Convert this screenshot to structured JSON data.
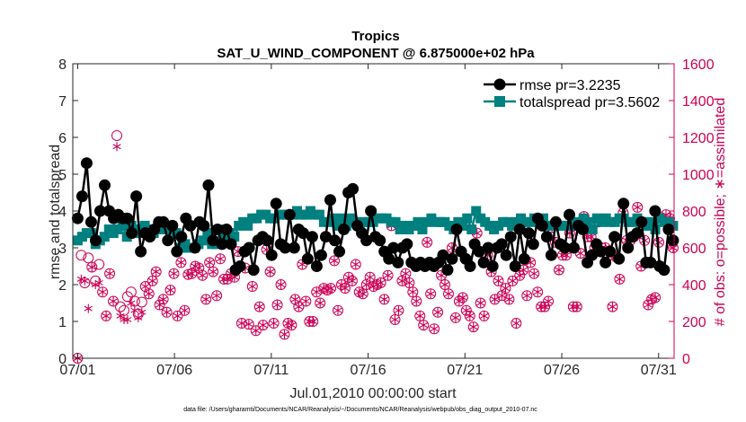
{
  "chart_data": {
    "type": "line",
    "title": "Tropics",
    "subtitle": "SAT_U_WIND_COMPONENT @ 6.875000e+02 hPa",
    "xlabel": "Jul.01,2010 00:00:00 start",
    "ylabel_left": "rmse and totalspread",
    "ylabel_right": "# of obs: o=possible; ∗=assimilated",
    "footnote": "data file: /Users/gharamti/Documents/NCAR/Reanalysis/~/Documents/NCAR/Reanalysis/webpub/obs_diag_output_2010-07.nc",
    "xlim": [
      0.75,
      31.8
    ],
    "ylim_left": [
      0,
      8
    ],
    "ylim_right": [
      0,
      1600
    ],
    "x_ticks": [
      1,
      6,
      11,
      16,
      21,
      26,
      31
    ],
    "x_tick_labels": [
      "07/01",
      "07/06",
      "07/11",
      "07/16",
      "07/21",
      "07/26",
      "07/31"
    ],
    "y_left_ticks": [
      "0",
      "1",
      "2",
      "3",
      "4",
      "5",
      "6",
      "7",
      "8"
    ],
    "y_right_ticks": [
      "0",
      "200",
      "400",
      "600",
      "800",
      "1000",
      "1200",
      "1400",
      "1600"
    ],
    "legend_position": "top-right",
    "colors": {
      "rmse": "#000000",
      "spread": "#00807f",
      "obs": "#cc0055"
    },
    "series": [
      {
        "name": "rmse pr=3.2235",
        "axis": "left",
        "marker": "circle",
        "values": [
          3.8,
          4.4,
          5.3,
          3.7,
          3.2,
          4.0,
          4.7,
          4.0,
          3.8,
          3.9,
          3.8,
          3.8,
          3.4,
          4.4,
          2.9,
          3.4,
          3.3,
          3.5,
          3.7,
          3.7,
          3.2,
          3.6,
          2.9,
          3.3,
          3.8,
          3.6,
          3.0,
          3.7,
          3.6,
          4.7,
          3.2,
          3.5,
          3.1,
          3.5,
          3.1,
          2.4,
          2.5,
          2.9,
          3.0,
          2.4,
          3.2,
          3.3,
          3.2,
          2.8,
          4.2,
          3.1,
          3.0,
          3.9,
          3.0,
          3.5,
          3.4,
          2.7,
          3.3,
          2.5,
          2.8,
          3.3,
          4.3,
          3.2,
          2.9,
          3.5,
          4.5,
          4.6,
          3.6,
          3.4,
          3.2,
          4.0,
          3.3,
          3.2,
          2.9,
          2.7,
          3.0,
          2.6,
          3.0,
          3.1,
          2.6,
          2.5,
          2.6,
          2.5,
          2.6,
          2.5,
          2.6,
          2.8,
          2.4,
          2.7,
          3.5,
          2.9,
          2.7,
          2.5,
          3.1,
          2.9,
          2.6,
          3.0,
          2.5,
          3.0,
          3.1,
          2.8,
          3.3,
          2.5,
          3.5,
          2.7,
          3.4,
          3.1,
          3.8,
          3.6,
          3.3,
          2.8,
          3.7,
          3.1,
          3.0,
          3.9,
          3.0,
          3.6,
          3.5,
          2.6,
          2.8,
          3.1,
          2.9,
          2.6,
          2.9,
          3.3,
          2.7,
          4.2,
          3.0,
          3.3,
          3.4,
          3.7,
          2.6,
          2.6,
          4.0,
          2.5,
          2.4,
          3.5,
          3.2
        ]
      },
      {
        "name": "totalspread pr=3.5602",
        "axis": "left",
        "marker": "square",
        "values": [
          3.2,
          3.3,
          3.4,
          3.4,
          3.1,
          3.2,
          3.3,
          3.5,
          3.4,
          3.5,
          3.6,
          3.3,
          3.6,
          3.5,
          3.4,
          3.6,
          3.5,
          3.4,
          3.5,
          3.6,
          3.5,
          3.6,
          3.4,
          3.0,
          3.1,
          3.0,
          3.0,
          3.1,
          3.2,
          3.4,
          3.1,
          3.1,
          3.5,
          3.3,
          3.4,
          3.3,
          3.6,
          3.7,
          3.6,
          3.8,
          3.8,
          3.9,
          3.9,
          3.8,
          3.8,
          3.9,
          3.9,
          3.9,
          3.9,
          4.0,
          3.9,
          3.9,
          4.0,
          3.9,
          3.9,
          3.7,
          3.7,
          3.8,
          3.6,
          3.8,
          3.6,
          3.8,
          3.7,
          3.6,
          3.7,
          3.7,
          3.7,
          3.8,
          3.8,
          3.8,
          3.7,
          3.7,
          3.5,
          3.6,
          3.5,
          3.6,
          3.7,
          3.5,
          3.7,
          3.8,
          3.7,
          3.7,
          3.7,
          3.6,
          3.5,
          3.7,
          3.6,
          3.8,
          3.5,
          4.0,
          3.8,
          3.7,
          3.6,
          3.5,
          3.6,
          3.7,
          3.7,
          3.6,
          3.7,
          3.8,
          3.7,
          3.7,
          3.8,
          3.7,
          3.8,
          3.6,
          3.6,
          3.6,
          3.6,
          3.6,
          3.6,
          3.7,
          3.6,
          3.8,
          3.7,
          3.5,
          3.8,
          3.7,
          3.8,
          3.7,
          3.7,
          3.8,
          3.8,
          3.7,
          3.7,
          3.8,
          3.7,
          3.6,
          3.7,
          3.5,
          3.8,
          3.7,
          3.7,
          3.6
        ]
      },
      {
        "name": "possible obs",
        "axis": "right",
        "marker": "open-circle",
        "values": [
          0,
          560,
          410,
          545,
          495,
          420,
          510,
          360,
          230,
          460,
          310,
          1210,
          280,
          260,
          335,
          360,
          310,
          240,
          305,
          390,
          350,
          420,
          470,
          290,
          320,
          250,
          370,
          460,
          230,
          520,
          260,
          455,
          460,
          500,
          490,
          450,
          320,
          520,
          470,
          340,
          540,
          430,
          430,
          460,
          440,
          580,
          190,
          490,
          185,
          390,
          150,
          280,
          180,
          590,
          470,
          190,
          290,
          400,
          130,
          190,
          180,
          320,
          280,
          510,
          310,
          200,
          200,
          360,
          300,
          380,
          370,
          380,
          530,
          260,
          400,
          380,
          440,
          420,
          510,
          360,
          350,
          400,
          440,
          390,
          400,
          410,
          320,
          450,
          720,
          210,
          260,
          420,
          460,
          410,
          360,
          310,
          230,
          180,
          630,
          350,
          160,
          250,
          450,
          400,
          350,
          600,
          220,
          310,
          330,
          260,
          230,
          170,
          680,
          300,
          230,
          560,
          470,
          320,
          420,
          340,
          380,
          320,
          420,
          190,
          450,
          480,
          340,
          520,
          460,
          360,
          280,
          280,
          310,
          710,
          630,
          480,
          560,
          560,
          680,
          280,
          280,
          570,
          770,
          660,
          660,
          600,
          740,
          600,
          600,
          560,
          280,
          550,
          430,
          790,
          640,
          640,
          660,
          820,
          500,
          640,
          290,
          320,
          330,
          630,
          1440,
          780,
          760,
          600
        ]
      },
      {
        "name": "assimilated obs",
        "axis": "right",
        "marker": "asterisk",
        "values": [
          0,
          430,
          420,
          270,
          495,
          400,
          410,
          360,
          230,
          460,
          310,
          1150,
          230,
          210,
          210,
          300,
          260,
          220,
          250,
          390,
          350,
          420,
          470,
          290,
          320,
          250,
          370,
          460,
          230,
          520,
          260,
          455,
          460,
          500,
          490,
          450,
          320,
          520,
          470,
          340,
          540,
          430,
          430,
          460,
          440,
          580,
          190,
          490,
          185,
          390,
          150,
          280,
          180,
          590,
          470,
          190,
          290,
          400,
          130,
          190,
          180,
          320,
          280,
          510,
          310,
          200,
          200,
          360,
          300,
          380,
          370,
          380,
          530,
          260,
          400,
          380,
          440,
          420,
          510,
          360,
          350,
          400,
          440,
          390,
          400,
          410,
          320,
          450,
          720,
          210,
          260,
          420,
          460,
          410,
          360,
          310,
          230,
          180,
          630,
          350,
          160,
          250,
          450,
          400,
          350,
          600,
          220,
          310,
          330,
          260,
          230,
          170,
          680,
          300,
          230,
          560,
          470,
          320,
          420,
          340,
          380,
          320,
          420,
          190,
          450,
          480,
          340,
          520,
          460,
          360,
          280,
          280,
          310,
          710,
          630,
          480,
          560,
          560,
          680,
          280,
          280,
          570,
          770,
          660,
          660,
          600,
          740,
          600,
          600,
          560,
          280,
          550,
          430,
          790,
          640,
          640,
          660,
          820,
          500,
          640,
          290,
          320,
          330,
          630,
          1460,
          780,
          760,
          600
        ]
      }
    ]
  }
}
